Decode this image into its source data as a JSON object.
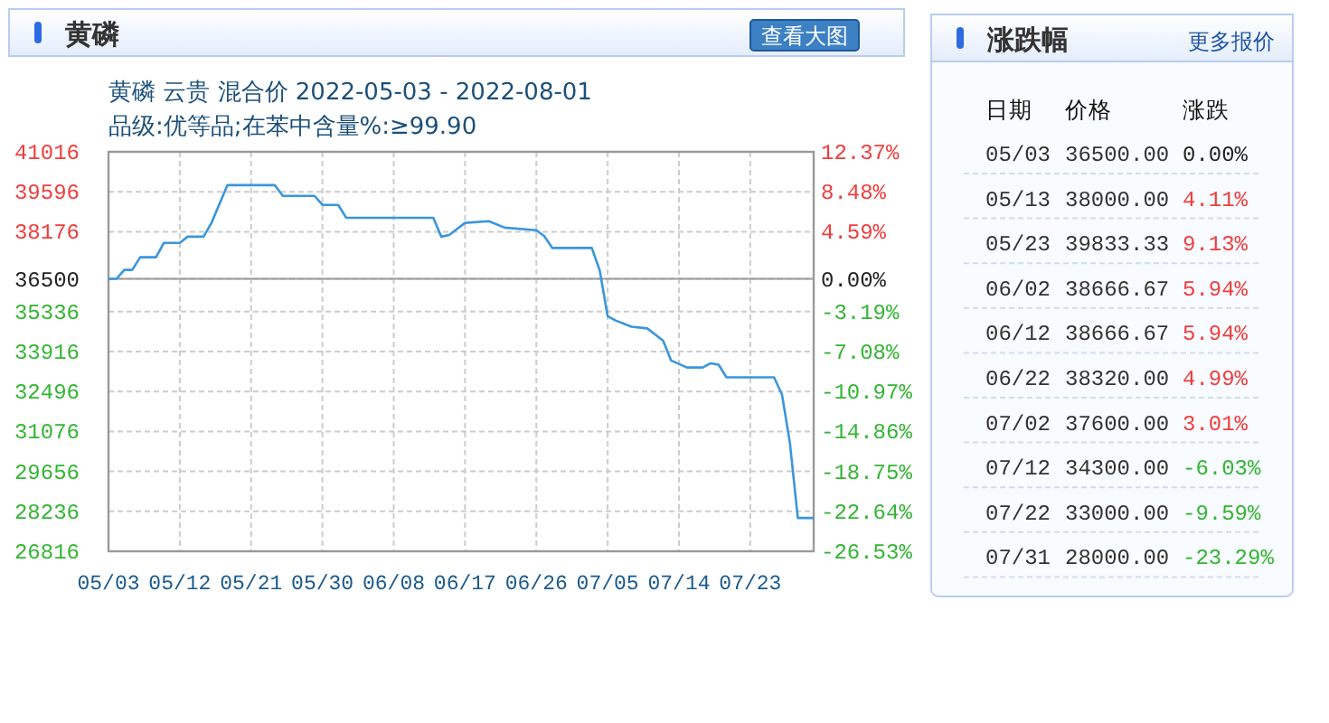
{
  "chart_data": [
    {
      "type": "line",
      "title": "黄磷",
      "subtitle": "黄磷 云贵 混合价 2022-05-03 - 2022-08-01\n品级:优等品;在苯中含量%:≥99.90",
      "annotations": [
        "查看大图"
      ],
      "series": [
        {
          "color": "#3a96dd",
          "x": [
            "--05-03",
            "--05-04",
            "--05-05",
            "--05-06",
            "--05-07",
            "--05-09",
            "--05-10",
            "--05-12",
            "--05-13",
            "--05-15",
            "--05-16",
            "--05-18",
            "--05-24",
            "--05-25",
            "--05-29",
            "--05-30",
            "--06-01",
            "--06-02",
            "--06-13",
            "--06-14",
            "--06-15",
            "--06-17",
            "--06-20",
            "--06-22",
            "--06-26",
            "--06-27",
            "--06-28",
            "--07-03",
            "--07-04",
            "--07-05",
            "--07-06",
            "--07-08",
            "--07-10",
            "--07-12",
            "--07-13",
            "--07-15",
            "--07-17",
            "--07-18",
            "--07-19",
            "--07-20",
            "--07-26",
            "--07-27",
            "--07-28",
            "--07-29",
            "--07-31"
          ],
          "values": [
            36500,
            36500,
            36820,
            36820,
            37270,
            37270,
            37780,
            37780,
            38000,
            38000,
            38490,
            39830,
            39830,
            39450,
            39450,
            39130,
            39130,
            38670,
            38670,
            38000,
            38060,
            38490,
            38550,
            38320,
            38230,
            38020,
            37600,
            37600,
            36800,
            35170,
            35020,
            34800,
            34740,
            34300,
            33600,
            33350,
            33350,
            33500,
            33450,
            33000,
            33000,
            32390,
            30670,
            28000,
            28000
          ]
        }
      ],
      "xlim": [
        "--05-03",
        "--07-31"
      ],
      "xticks": [
        {
          "value": "--05-03",
          "label": "05/03"
        },
        {
          "value": "--05-12",
          "label": "05/12"
        },
        {
          "value": "--05-21",
          "label": "05/21"
        },
        {
          "value": "--05-30",
          "label": "05/30"
        },
        {
          "value": "--06-08",
          "label": "06/08"
        },
        {
          "value": "--06-17",
          "label": "06/17"
        },
        {
          "value": "--06-26",
          "label": "06/26"
        },
        {
          "value": "--07-05",
          "label": "07/05"
        },
        {
          "value": "--07-14",
          "label": "07/14"
        },
        {
          "value": "--07-23",
          "label": "07/23"
        }
      ],
      "ylim": [
        26816,
        41016
      ],
      "yticks": [
        41016,
        39596,
        38176,
        36500,
        35336,
        33916,
        32496,
        31076,
        29656,
        28236,
        26816
      ],
      "y2lim": [
        -26.53,
        12.37
      ],
      "y2ticks": [
        {
          "value": 12.37,
          "label": "12.37%"
        },
        {
          "value": 8.48,
          "label": "8.48%"
        },
        {
          "value": 4.59,
          "label": "4.59%"
        },
        {
          "value": 0,
          "label": "0.00%"
        },
        {
          "value": -3.19,
          "label": "-3.19%"
        },
        {
          "value": -7.08,
          "label": "-7.08%"
        },
        {
          "value": -10.97,
          "label": "-10.97%"
        },
        {
          "value": -14.86,
          "label": "-14.86%"
        },
        {
          "value": -18.75,
          "label": "-18.75%"
        },
        {
          "value": -22.64,
          "label": "-22.64%"
        },
        {
          "value": -26.53,
          "label": "-26.53%"
        }
      ],
      "grid": true,
      "ref_lines": [
        {
          "axis": "y",
          "value": 36500,
          "color": "#999999"
        }
      ]
    },
    {
      "type": "other",
      "title": "涨跌幅",
      "annotations": [
        "更多报价",
        "日期",
        "价格",
        "涨跌"
      ],
      "categories": [
        "05/03",
        "05/13",
        "05/23",
        "06/02",
        "06/12",
        "06/22",
        "07/02",
        "07/12",
        "07/22",
        "07/31"
      ],
      "series": [
        {
          "values": [
            36500,
            38000,
            39833.33,
            38666.67,
            38666.67,
            38320,
            37600,
            34300,
            33000,
            28000
          ],
          "value_labels": [
            "36500.00",
            "38000.00",
            "39833.33",
            "38666.67",
            "38666.67",
            "38320.00",
            "37600.00",
            "34300.00",
            "33000.00",
            "28000.00"
          ]
        },
        {
          "values": [
            0,
            4.11,
            9.13,
            5.94,
            5.94,
            4.99,
            3.01,
            -6.03,
            -9.59,
            -23.29
          ],
          "value_labels": [
            "0.00%",
            "4.11%",
            "9.13%",
            "5.94%",
            "5.94%",
            "4.99%",
            "3.01%",
            "-6.03%",
            "-9.59%",
            "-23.29%"
          ]
        }
      ]
    }
  ]
}
